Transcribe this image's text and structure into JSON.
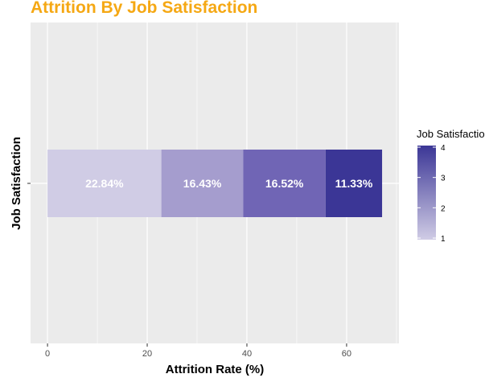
{
  "chart_data": {
    "type": "bar",
    "orientation": "horizontal",
    "stacked": true,
    "title": "Attrition By Job Satisfaction",
    "xlabel": "Attrition Rate (%)",
    "ylabel": "Job Satisfaction",
    "xlim": [
      -3.4,
      70.5
    ],
    "x_ticks": [
      0,
      20,
      40,
      60
    ],
    "grid": true,
    "categories": [
      ""
    ],
    "series": [
      {
        "level": 1,
        "value": 22.84,
        "label": "22.84%",
        "color": "#d0cce5"
      },
      {
        "level": 2,
        "value": 16.43,
        "label": "16.43%",
        "color": "#a59dce"
      },
      {
        "level": 3,
        "value": 16.52,
        "label": "16.52%",
        "color": "#7065b5"
      },
      {
        "level": 4,
        "value": 11.33,
        "label": "11.33%",
        "color": "#3b3696"
      }
    ],
    "legend": {
      "title": "Job Satisfaction",
      "placement": "right",
      "range": [
        1,
        4
      ],
      "ticks": [
        "1",
        "2",
        "3",
        "4"
      ],
      "gradient": [
        "#d0cce5",
        "#3b3696"
      ]
    },
    "colors": {
      "title": "#f5a814",
      "panel": "#ebebeb",
      "grid": "#ffffff"
    }
  }
}
